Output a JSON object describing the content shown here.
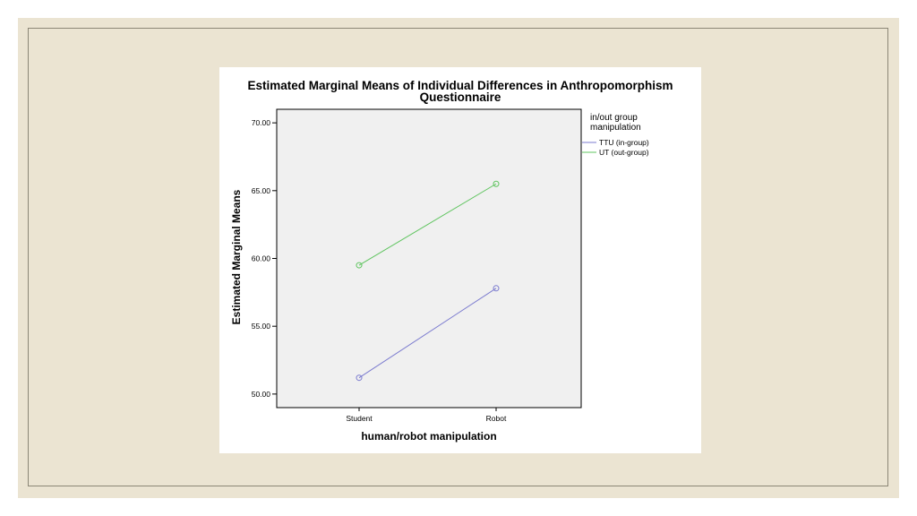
{
  "slide": {
    "background_color": "#ebe4d2",
    "frame_color": "#8b8676"
  },
  "chart_data": {
    "type": "line",
    "title_line1": "Estimated Marginal Means of Individual Differences in Anthropomorphism",
    "title_line2": "Questionnaire",
    "xlabel": "human/robot manipulation",
    "ylabel": "Estimated Marginal Means",
    "categories": [
      "Student",
      "Robot"
    ],
    "ylim": [
      49.0,
      71.0
    ],
    "yticks": [
      50,
      55,
      60,
      65,
      70
    ],
    "ytick_labels": [
      "50.00",
      "55.00",
      "60.00",
      "65.00",
      "70.00"
    ],
    "grid": false,
    "plot_background": "#f0f0f0",
    "legend_title_line1": "in/out group",
    "legend_title_line2": "manipulation",
    "legend_position": "right",
    "series": [
      {
        "name": "TTU (in-group)",
        "color": "#7b7bcf",
        "values": [
          51.2,
          57.8
        ]
      },
      {
        "name": "UT (out-group)",
        "color": "#5fc45f",
        "values": [
          59.5,
          65.5
        ]
      }
    ]
  }
}
